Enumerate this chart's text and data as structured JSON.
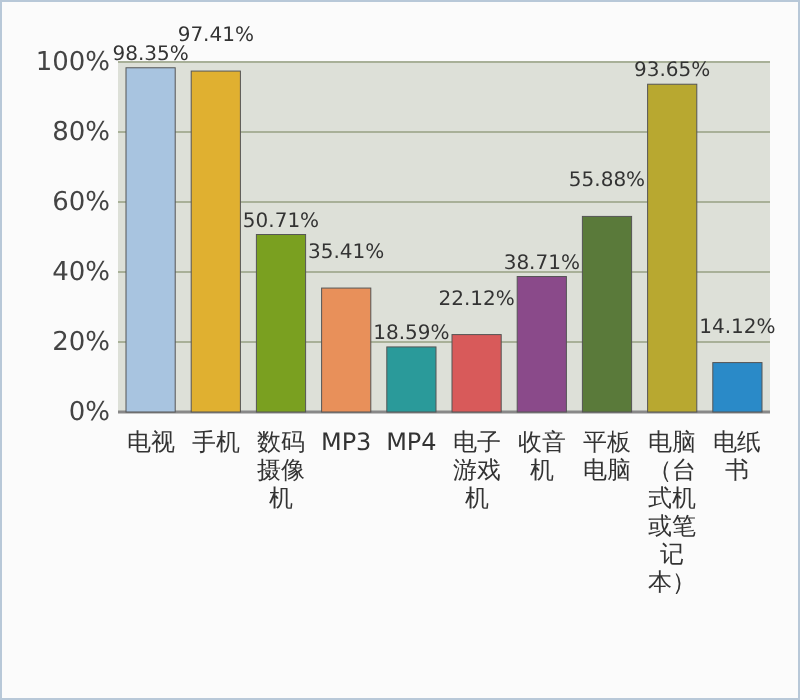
{
  "chart_data": {
    "type": "bar",
    "categories": [
      "电视",
      "手机",
      "数码摄像机",
      "MP3",
      "MP4",
      "电子游戏机",
      "收音机",
      "平板电脑",
      "电脑（台式机或笔记本）",
      "电纸书"
    ],
    "values": [
      98.35,
      97.41,
      50.71,
      35.41,
      18.59,
      22.12,
      38.71,
      55.88,
      93.65,
      14.12
    ],
    "value_labels": [
      "98.35%",
      "97.41%",
      "50.71%",
      "35.41%",
      "18.59%",
      "22.12%",
      "38.71%",
      "55.88%",
      "93.65%",
      "14.12%"
    ],
    "colors": [
      "#a8c4e0",
      "#e0b030",
      "#7aa020",
      "#e8905a",
      "#2a9a9a",
      "#d85a5a",
      "#8a4a8a",
      "#5a7a3a",
      "#b8a830",
      "#2a8ac8"
    ],
    "ylim": [
      0,
      100
    ],
    "yticks": [
      {
        "value": 0,
        "label": "0%"
      },
      {
        "value": 20,
        "label": "20%"
      },
      {
        "value": 40,
        "label": "40%"
      },
      {
        "value": 60,
        "label": "60%"
      },
      {
        "value": 80,
        "label": "80%"
      },
      {
        "value": 100,
        "label": "100%"
      }
    ],
    "grid": "y"
  }
}
